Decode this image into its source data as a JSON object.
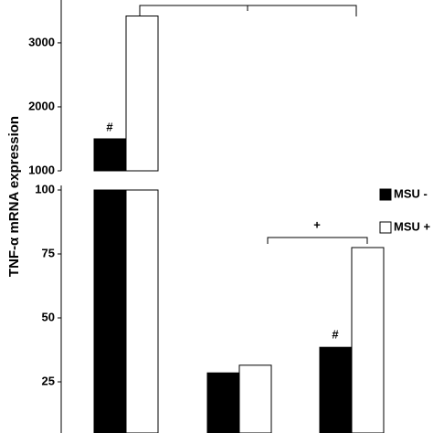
{
  "chart_data": {
    "type": "bar",
    "ylabel": "TNF-α mRNA expression",
    "categories": [
      null,
      null,
      null
    ],
    "series": [
      {
        "name": "MSU -",
        "color": "#000000",
        "values": [
          1500,
          28.5,
          38.5
        ]
      },
      {
        "name": "MSU +",
        "color": "#ffffff",
        "values": [
          3420,
          31.5,
          77.5
        ]
      }
    ],
    "panels": [
      {
        "ylim": [
          1000,
          3670
        ],
        "yticks": [
          1000,
          2000,
          3000
        ]
      },
      {
        "ylim": [
          5,
          100
        ],
        "yticks": [
          25,
          50,
          75,
          100
        ]
      }
    ],
    "annotations": [
      "#",
      "#",
      "+"
    ],
    "legend": "right"
  }
}
